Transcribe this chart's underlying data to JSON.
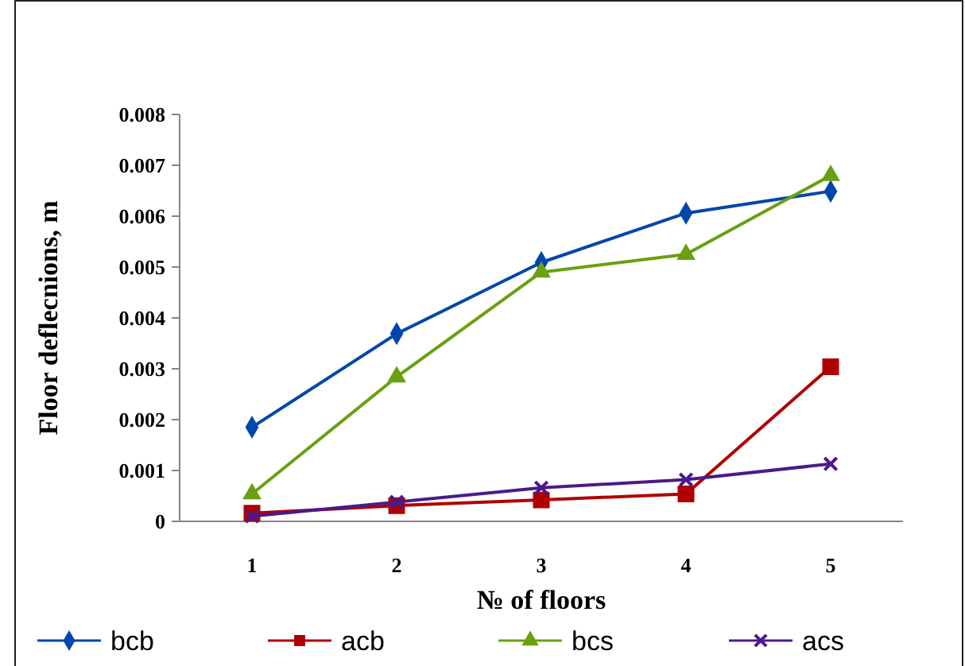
{
  "chart_data": {
    "type": "line",
    "xlabel": "№ of floors",
    "ylabel": "Floor deflecnions, m",
    "categories": [
      "1",
      "2",
      "3",
      "4",
      "5"
    ],
    "ylim": [
      0,
      0.008
    ],
    "yticks": [
      {
        "value": 0,
        "label": "0"
      },
      {
        "value": 0.001,
        "label": "0.001"
      },
      {
        "value": 0.002,
        "label": "0.002"
      },
      {
        "value": 0.003,
        "label": "0.003"
      },
      {
        "value": 0.004,
        "label": "0.004"
      },
      {
        "value": 0.005,
        "label": "0.005"
      },
      {
        "value": 0.006,
        "label": "0.006"
      },
      {
        "value": 0.007,
        "label": "0.007"
      },
      {
        "value": 0.008,
        "label": "0.008"
      }
    ],
    "grid": false,
    "legend": "bottom",
    "line_style": "solid",
    "series": [
      {
        "name": "bcb",
        "color": "#0047ab",
        "marker": "diamond",
        "values": [
          0.00185,
          0.00369,
          0.00509,
          0.00606,
          0.00649
        ]
      },
      {
        "name": "acb",
        "color": "#b00000",
        "marker": "square",
        "values": [
          0.00016,
          0.00031,
          0.00042,
          0.00054,
          0.00304
        ]
      },
      {
        "name": "bcs",
        "color": "#6aa012",
        "marker": "triangle",
        "values": [
          0.00054,
          0.00284,
          0.0049,
          0.00525,
          0.0068
        ]
      },
      {
        "name": "acs",
        "color": "#4b1a8a",
        "marker": "cross",
        "values": [
          0.0001,
          0.00038,
          0.00066,
          0.00082,
          0.00113
        ]
      }
    ]
  }
}
